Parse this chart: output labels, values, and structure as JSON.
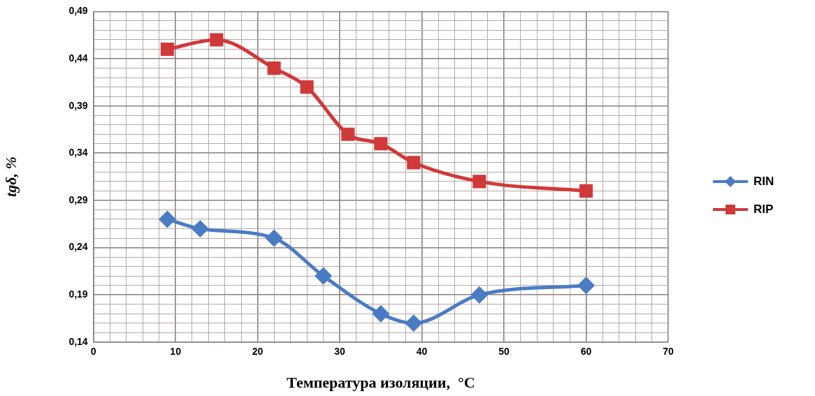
{
  "chart_data": {
    "type": "line",
    "xlabel": "Температура изоляции,  °C",
    "ylabel": "tgδ, %",
    "xlim": [
      0,
      70
    ],
    "xticks": [
      0,
      {
        "value": 2,
        "label": null
      },
      {
        "value": 4,
        "label": null
      },
      {
        "value": 6,
        "label": null
      },
      {
        "value": 8,
        "label": null
      },
      10,
      {
        "value": 12,
        "label": null
      },
      {
        "value": 14,
        "label": null
      },
      {
        "value": 16,
        "label": null
      },
      {
        "value": 18,
        "label": null
      },
      20,
      {
        "value": 22,
        "label": null
      },
      {
        "value": 24,
        "label": null
      },
      {
        "value": 26,
        "label": null
      },
      {
        "value": 28,
        "label": null
      },
      30,
      {
        "value": 32,
        "label": null
      },
      {
        "value": 34,
        "label": null
      },
      {
        "value": 36,
        "label": null
      },
      {
        "value": 38,
        "label": null
      },
      40,
      {
        "value": 42,
        "label": null
      },
      {
        "value": 44,
        "label": null
      },
      {
        "value": 46,
        "label": null
      },
      {
        "value": 48,
        "label": null
      },
      50,
      {
        "value": 52,
        "label": null
      },
      {
        "value": 54,
        "label": null
      },
      {
        "value": 56,
        "label": null
      },
      {
        "value": 58,
        "label": null
      },
      60,
      {
        "value": 62,
        "label": null
      },
      {
        "value": 64,
        "label": null
      },
      {
        "value": 66,
        "label": null
      },
      {
        "value": 68,
        "label": null
      },
      70
    ],
    "ylim": [
      0.14,
      0.49
    ],
    "yticks": [
      {
        "value": 0.14,
        "label": "0,14"
      },
      {
        "value": 0.15,
        "label": null
      },
      {
        "value": 0.16,
        "label": null
      },
      {
        "value": 0.17,
        "label": null
      },
      {
        "value": 0.18,
        "label": null
      },
      {
        "value": 0.19,
        "label": "0,19"
      },
      {
        "value": 0.2,
        "label": null
      },
      {
        "value": 0.21,
        "label": null
      },
      {
        "value": 0.22,
        "label": null
      },
      {
        "value": 0.23,
        "label": null
      },
      {
        "value": 0.24,
        "label": "0,24"
      },
      {
        "value": 0.25,
        "label": null
      },
      {
        "value": 0.26,
        "label": null
      },
      {
        "value": 0.27,
        "label": null
      },
      {
        "value": 0.28,
        "label": null
      },
      {
        "value": 0.29,
        "label": "0,29"
      },
      {
        "value": 0.3,
        "label": null
      },
      {
        "value": 0.31,
        "label": null
      },
      {
        "value": 0.32,
        "label": null
      },
      {
        "value": 0.33,
        "label": null
      },
      {
        "value": 0.34,
        "label": "0,34"
      },
      {
        "value": 0.35,
        "label": null
      },
      {
        "value": 0.36,
        "label": null
      },
      {
        "value": 0.37,
        "label": null
      },
      {
        "value": 0.38,
        "label": null
      },
      {
        "value": 0.39,
        "label": "0,39"
      },
      {
        "value": 0.4,
        "label": null
      },
      {
        "value": 0.41,
        "label": null
      },
      {
        "value": 0.42,
        "label": null
      },
      {
        "value": 0.43,
        "label": null
      },
      {
        "value": 0.44,
        "label": "0,44"
      },
      {
        "value": 0.45,
        "label": null
      },
      {
        "value": 0.46,
        "label": null
      },
      {
        "value": 0.47,
        "label": null
      },
      {
        "value": 0.48,
        "label": null
      },
      {
        "value": 0.49,
        "label": "0,49"
      }
    ],
    "grid": true,
    "legend": "right",
    "series": [
      {
        "name": "RIN",
        "color": "#4a7cc3",
        "marker": "diamond",
        "x": [
          9,
          13,
          22,
          28,
          35,
          39,
          47,
          60
        ],
        "values": [
          0.27,
          0.26,
          0.25,
          0.21,
          0.17,
          0.16,
          0.19,
          0.2
        ]
      },
      {
        "name": "RIP",
        "color": "#d0393a",
        "marker": "square",
        "x": [
          9,
          15,
          22,
          26,
          31,
          35,
          39,
          47,
          60
        ],
        "values": [
          0.45,
          0.46,
          0.43,
          0.41,
          0.36,
          0.35,
          0.33,
          0.31,
          0.3
        ]
      }
    ]
  }
}
